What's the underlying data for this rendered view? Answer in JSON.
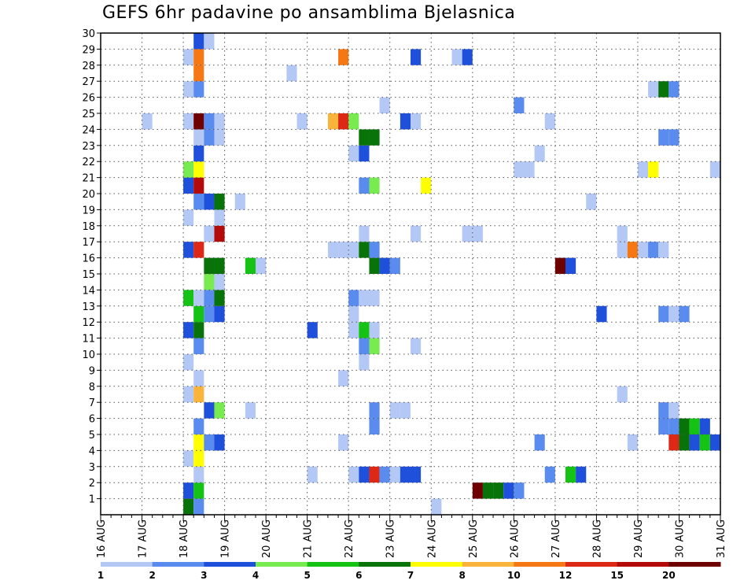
{
  "chart_data": {
    "type": "heatmap",
    "title": "GEFS 6hr padavine po ansamblima Bjelasnica",
    "x_tick_labels": [
      "16 AUG",
      "17 AUG",
      "18 AUG",
      "19 AUG",
      "20 AUG",
      "21 AUG",
      "22 AUG",
      "23 AUG",
      "24 AUG",
      "25 AUG",
      "26 AUG",
      "27 AUG",
      "28 AUG",
      "29 AUG",
      "30 AUG",
      "31 AUG"
    ],
    "y_tick_labels": [
      "1",
      "2",
      "3",
      "4",
      "5",
      "6",
      "7",
      "8",
      "9",
      "10",
      "11",
      "12",
      "13",
      "14",
      "15",
      "16",
      "17",
      "18",
      "19",
      "20",
      "21",
      "22",
      "23",
      "24",
      "25",
      "26",
      "27",
      "28",
      "29",
      "30"
    ],
    "x_range": [
      "16 AUG",
      "31 AUG"
    ],
    "y_range": [
      0,
      30
    ],
    "grid": true,
    "colorbar": {
      "tick_labels": [
        "1",
        "2",
        "3",
        "4",
        "5",
        "6",
        "7",
        "8",
        "10",
        "12",
        "15",
        "20"
      ],
      "colors": [
        "#b4c8f5",
        "#5a8cf0",
        "#1e50dc",
        "#78eb50",
        "#14c314",
        "#087308",
        "#ffff00",
        "#fab43c",
        "#f57814",
        "#dc2814",
        "#b40a0a",
        "#6e0000"
      ]
    },
    "cells": [
      {
        "m": 0,
        "x": "18 AUG 00Z",
        "v": 6
      },
      {
        "m": 0,
        "x": "18 AUG 06Z",
        "v": 2
      },
      {
        "m": 0,
        "x": "24 AUG 00Z",
        "v": 1
      },
      {
        "m": 1,
        "x": "18 AUG 00Z",
        "v": 3
      },
      {
        "m": 1,
        "x": "18 AUG 06Z",
        "v": 5
      },
      {
        "m": 1,
        "x": "25 AUG 00Z",
        "v": 20
      },
      {
        "m": 1,
        "x": "25 AUG 06Z",
        "v": 6
      },
      {
        "m": 1,
        "x": "25 AUG 12Z",
        "v": 6
      },
      {
        "m": 1,
        "x": "25 AUG 18Z",
        "v": 3
      },
      {
        "m": 1,
        "x": "26 AUG 00Z",
        "v": 2
      },
      {
        "m": 2,
        "x": "18 AUG 06Z",
        "v": 1
      },
      {
        "m": 2,
        "x": "21 AUG 00Z",
        "v": 1
      },
      {
        "m": 2,
        "x": "22 AUG 00Z",
        "v": 1
      },
      {
        "m": 2,
        "x": "22 AUG 06Z",
        "v": 3
      },
      {
        "m": 2,
        "x": "22 AUG 12Z",
        "v": 12
      },
      {
        "m": 2,
        "x": "22 AUG 18Z",
        "v": 2
      },
      {
        "m": 2,
        "x": "23 AUG 00Z",
        "v": 1
      },
      {
        "m": 2,
        "x": "23 AUG 06Z",
        "v": 3
      },
      {
        "m": 2,
        "x": "23 AUG 12Z",
        "v": 3
      },
      {
        "m": 2,
        "x": "26 AUG 18Z",
        "v": 2
      },
      {
        "m": 2,
        "x": "27 AUG 06Z",
        "v": 5
      },
      {
        "m": 2,
        "x": "27 AUG 12Z",
        "v": 3
      },
      {
        "m": 3,
        "x": "18 AUG 00Z",
        "v": 1
      },
      {
        "m": 3,
        "x": "18 AUG 06Z",
        "v": 7
      },
      {
        "m": 4,
        "x": "18 AUG 06Z",
        "v": 7
      },
      {
        "m": 4,
        "x": "18 AUG 12Z",
        "v": 2
      },
      {
        "m": 4,
        "x": "18 AUG 18Z",
        "v": 3
      },
      {
        "m": 4,
        "x": "21 AUG 18Z",
        "v": 1
      },
      {
        "m": 4,
        "x": "26 AUG 12Z",
        "v": 2
      },
      {
        "m": 4,
        "x": "28 AUG 18Z",
        "v": 1
      },
      {
        "m": 4,
        "x": "29 AUG 18Z",
        "v": 12
      },
      {
        "m": 4,
        "x": "30 AUG 00Z",
        "v": 6
      },
      {
        "m": 4,
        "x": "30 AUG 06Z",
        "v": 3
      },
      {
        "m": 4,
        "x": "30 AUG 12Z",
        "v": 5
      },
      {
        "m": 4,
        "x": "30 AUG 18Z",
        "v": 3
      },
      {
        "m": 5,
        "x": "18 AUG 06Z",
        "v": 2
      },
      {
        "m": 5,
        "x": "22 AUG 12Z",
        "v": 2
      },
      {
        "m": 5,
        "x": "29 AUG 12Z",
        "v": 2
      },
      {
        "m": 5,
        "x": "29 AUG 18Z",
        "v": 2
      },
      {
        "m": 5,
        "x": "30 AUG 00Z",
        "v": 6
      },
      {
        "m": 5,
        "x": "30 AUG 06Z",
        "v": 5
      },
      {
        "m": 5,
        "x": "30 AUG 12Z",
        "v": 3
      },
      {
        "m": 6,
        "x": "18 AUG 12Z",
        "v": 3
      },
      {
        "m": 6,
        "x": "18 AUG 18Z",
        "v": 4
      },
      {
        "m": 6,
        "x": "19 AUG 12Z",
        "v": 1
      },
      {
        "m": 6,
        "x": "22 AUG 12Z",
        "v": 2
      },
      {
        "m": 6,
        "x": "23 AUG 00Z",
        "v": 1
      },
      {
        "m": 6,
        "x": "23 AUG 06Z",
        "v": 1
      },
      {
        "m": 6,
        "x": "29 AUG 12Z",
        "v": 2
      },
      {
        "m": 6,
        "x": "29 AUG 18Z",
        "v": 1
      },
      {
        "m": 7,
        "x": "18 AUG 00Z",
        "v": 1
      },
      {
        "m": 7,
        "x": "18 AUG 06Z",
        "v": 8
      },
      {
        "m": 7,
        "x": "28 AUG 12Z",
        "v": 1
      },
      {
        "m": 8,
        "x": "18 AUG 06Z",
        "v": 1
      },
      {
        "m": 8,
        "x": "21 AUG 18Z",
        "v": 1
      },
      {
        "m": 9,
        "x": "18 AUG 00Z",
        "v": 1
      },
      {
        "m": 9,
        "x": "22 AUG 06Z",
        "v": 1
      },
      {
        "m": 10,
        "x": "18 AUG 06Z",
        "v": 2
      },
      {
        "m": 10,
        "x": "22 AUG 06Z",
        "v": 2
      },
      {
        "m": 10,
        "x": "22 AUG 12Z",
        "v": 4
      },
      {
        "m": 10,
        "x": "23 AUG 12Z",
        "v": 1
      },
      {
        "m": 11,
        "x": "18 AUG 00Z",
        "v": 3
      },
      {
        "m": 11,
        "x": "18 AUG 06Z",
        "v": 6
      },
      {
        "m": 11,
        "x": "21 AUG 00Z",
        "v": 3
      },
      {
        "m": 11,
        "x": "22 AUG 00Z",
        "v": 1
      },
      {
        "m": 11,
        "x": "22 AUG 06Z",
        "v": 5
      },
      {
        "m": 11,
        "x": "22 AUG 12Z",
        "v": 1
      },
      {
        "m": 12,
        "x": "18 AUG 06Z",
        "v": 5
      },
      {
        "m": 12,
        "x": "18 AUG 12Z",
        "v": 2
      },
      {
        "m": 12,
        "x": "18 AUG 18Z",
        "v": 3
      },
      {
        "m": 12,
        "x": "22 AUG 00Z",
        "v": 1
      },
      {
        "m": 12,
        "x": "28 AUG 00Z",
        "v": 3
      },
      {
        "m": 12,
        "x": "29 AUG 12Z",
        "v": 2
      },
      {
        "m": 12,
        "x": "29 AUG 18Z",
        "v": 1
      },
      {
        "m": 12,
        "x": "30 AUG 00Z",
        "v": 2
      },
      {
        "m": 13,
        "x": "18 AUG 00Z",
        "v": 5
      },
      {
        "m": 13,
        "x": "18 AUG 06Z",
        "v": 1
      },
      {
        "m": 13,
        "x": "18 AUG 12Z",
        "v": 2
      },
      {
        "m": 13,
        "x": "18 AUG 18Z",
        "v": 6
      },
      {
        "m": 13,
        "x": "22 AUG 00Z",
        "v": 2
      },
      {
        "m": 13,
        "x": "22 AUG 06Z",
        "v": 1
      },
      {
        "m": 13,
        "x": "22 AUG 12Z",
        "v": 1
      },
      {
        "m": 14,
        "x": "18 AUG 12Z",
        "v": 4
      },
      {
        "m": 14,
        "x": "18 AUG 18Z",
        "v": 1
      },
      {
        "m": 15,
        "x": "18 AUG 12Z",
        "v": 6
      },
      {
        "m": 15,
        "x": "18 AUG 18Z",
        "v": 6
      },
      {
        "m": 15,
        "x": "19 AUG 12Z",
        "v": 5
      },
      {
        "m": 15,
        "x": "19 AUG 18Z",
        "v": 1
      },
      {
        "m": 15,
        "x": "22 AUG 12Z",
        "v": 6
      },
      {
        "m": 15,
        "x": "22 AUG 18Z",
        "v": 3
      },
      {
        "m": 15,
        "x": "23 AUG 00Z",
        "v": 2
      },
      {
        "m": 15,
        "x": "27 AUG 00Z",
        "v": 20
      },
      {
        "m": 15,
        "x": "27 AUG 06Z",
        "v": 3
      },
      {
        "m": 16,
        "x": "18 AUG 00Z",
        "v": 3
      },
      {
        "m": 16,
        "x": "18 AUG 06Z",
        "v": 12
      },
      {
        "m": 16,
        "x": "21 AUG 12Z",
        "v": 1
      },
      {
        "m": 16,
        "x": "21 AUG 18Z",
        "v": 1
      },
      {
        "m": 16,
        "x": "22 AUG 00Z",
        "v": 1
      },
      {
        "m": 16,
        "x": "22 AUG 06Z",
        "v": 6
      },
      {
        "m": 16,
        "x": "22 AUG 12Z",
        "v": 2
      },
      {
        "m": 16,
        "x": "28 AUG 12Z",
        "v": 1
      },
      {
        "m": 16,
        "x": "28 AUG 18Z",
        "v": 10
      },
      {
        "m": 16,
        "x": "29 AUG 00Z",
        "v": 1
      },
      {
        "m": 16,
        "x": "29 AUG 06Z",
        "v": 2
      },
      {
        "m": 16,
        "x": "29 AUG 12Z",
        "v": 1
      },
      {
        "m": 17,
        "x": "18 AUG 12Z",
        "v": 1
      },
      {
        "m": 17,
        "x": "18 AUG 18Z",
        "v": 15
      },
      {
        "m": 17,
        "x": "22 AUG 06Z",
        "v": 1
      },
      {
        "m": 17,
        "x": "23 AUG 12Z",
        "v": 1
      },
      {
        "m": 17,
        "x": "24 AUG 18Z",
        "v": 1
      },
      {
        "m": 17,
        "x": "25 AUG 00Z",
        "v": 1
      },
      {
        "m": 17,
        "x": "28 AUG 12Z",
        "v": 1
      },
      {
        "m": 18,
        "x": "18 AUG 00Z",
        "v": 1
      },
      {
        "m": 18,
        "x": "18 AUG 18Z",
        "v": 1
      },
      {
        "m": 19,
        "x": "18 AUG 06Z",
        "v": 2
      },
      {
        "m": 19,
        "x": "18 AUG 12Z",
        "v": 3
      },
      {
        "m": 19,
        "x": "18 AUG 18Z",
        "v": 6
      },
      {
        "m": 19,
        "x": "19 AUG 06Z",
        "v": 1
      },
      {
        "m": 19,
        "x": "27 AUG 18Z",
        "v": 1
      },
      {
        "m": 20,
        "x": "18 AUG 00Z",
        "v": 3
      },
      {
        "m": 20,
        "x": "18 AUG 06Z",
        "v": 15
      },
      {
        "m": 20,
        "x": "22 AUG 06Z",
        "v": 2
      },
      {
        "m": 20,
        "x": "22 AUG 12Z",
        "v": 4
      },
      {
        "m": 20,
        "x": "23 AUG 18Z",
        "v": 7
      },
      {
        "m": 21,
        "x": "18 AUG 00Z",
        "v": 4
      },
      {
        "m": 21,
        "x": "18 AUG 06Z",
        "v": 7
      },
      {
        "m": 21,
        "x": "26 AUG 00Z",
        "v": 1
      },
      {
        "m": 21,
        "x": "26 AUG 06Z",
        "v": 1
      },
      {
        "m": 21,
        "x": "29 AUG 00Z",
        "v": 1
      },
      {
        "m": 21,
        "x": "29 AUG 06Z",
        "v": 7
      },
      {
        "m": 21,
        "x": "30 AUG 18Z",
        "v": 1
      },
      {
        "m": 22,
        "x": "18 AUG 06Z",
        "v": 3
      },
      {
        "m": 22,
        "x": "22 AUG 00Z",
        "v": 1
      },
      {
        "m": 22,
        "x": "22 AUG 06Z",
        "v": 3
      },
      {
        "m": 22,
        "x": "26 AUG 12Z",
        "v": 1
      },
      {
        "m": 23,
        "x": "18 AUG 06Z",
        "v": 1
      },
      {
        "m": 23,
        "x": "18 AUG 12Z",
        "v": 2
      },
      {
        "m": 23,
        "x": "18 AUG 18Z",
        "v": 1
      },
      {
        "m": 23,
        "x": "22 AUG 06Z",
        "v": 6
      },
      {
        "m": 23,
        "x": "22 AUG 12Z",
        "v": 6
      },
      {
        "m": 23,
        "x": "29 AUG 12Z",
        "v": 2
      },
      {
        "m": 23,
        "x": "29 AUG 18Z",
        "v": 2
      },
      {
        "m": 24,
        "x": "17 AUG 00Z",
        "v": 1
      },
      {
        "m": 24,
        "x": "18 AUG 00Z",
        "v": 1
      },
      {
        "m": 24,
        "x": "18 AUG 06Z",
        "v": 20
      },
      {
        "m": 24,
        "x": "18 AUG 12Z",
        "v": 2
      },
      {
        "m": 24,
        "x": "18 AUG 18Z",
        "v": 1
      },
      {
        "m": 24,
        "x": "20 AUG 18Z",
        "v": 1
      },
      {
        "m": 24,
        "x": "21 AUG 12Z",
        "v": 8
      },
      {
        "m": 24,
        "x": "21 AUG 18Z",
        "v": 12
      },
      {
        "m": 24,
        "x": "22 AUG 00Z",
        "v": 4
      },
      {
        "m": 24,
        "x": "23 AUG 06Z",
        "v": 3
      },
      {
        "m": 24,
        "x": "23 AUG 12Z",
        "v": 1
      },
      {
        "m": 24,
        "x": "26 AUG 18Z",
        "v": 1
      },
      {
        "m": 25,
        "x": "22 AUG 18Z",
        "v": 1
      },
      {
        "m": 25,
        "x": "26 AUG 00Z",
        "v": 2
      },
      {
        "m": 26,
        "x": "18 AUG 00Z",
        "v": 1
      },
      {
        "m": 26,
        "x": "18 AUG 06Z",
        "v": 2
      },
      {
        "m": 26,
        "x": "29 AUG 06Z",
        "v": 1
      },
      {
        "m": 26,
        "x": "29 AUG 12Z",
        "v": 6
      },
      {
        "m": 26,
        "x": "29 AUG 18Z",
        "v": 2
      },
      {
        "m": 27,
        "x": "18 AUG 06Z",
        "v": 10
      },
      {
        "m": 27,
        "x": "20 AUG 12Z",
        "v": 1
      },
      {
        "m": 28,
        "x": "18 AUG 00Z",
        "v": 1
      },
      {
        "m": 28,
        "x": "18 AUG 06Z",
        "v": 10
      },
      {
        "m": 28,
        "x": "21 AUG 18Z",
        "v": 10
      },
      {
        "m": 28,
        "x": "23 AUG 12Z",
        "v": 3
      },
      {
        "m": 28,
        "x": "24 AUG 12Z",
        "v": 1
      },
      {
        "m": 28,
        "x": "24 AUG 18Z",
        "v": 3
      },
      {
        "m": 29,
        "x": "18 AUG 06Z",
        "v": 3
      },
      {
        "m": 29,
        "x": "18 AUG 12Z",
        "v": 1
      }
    ]
  }
}
